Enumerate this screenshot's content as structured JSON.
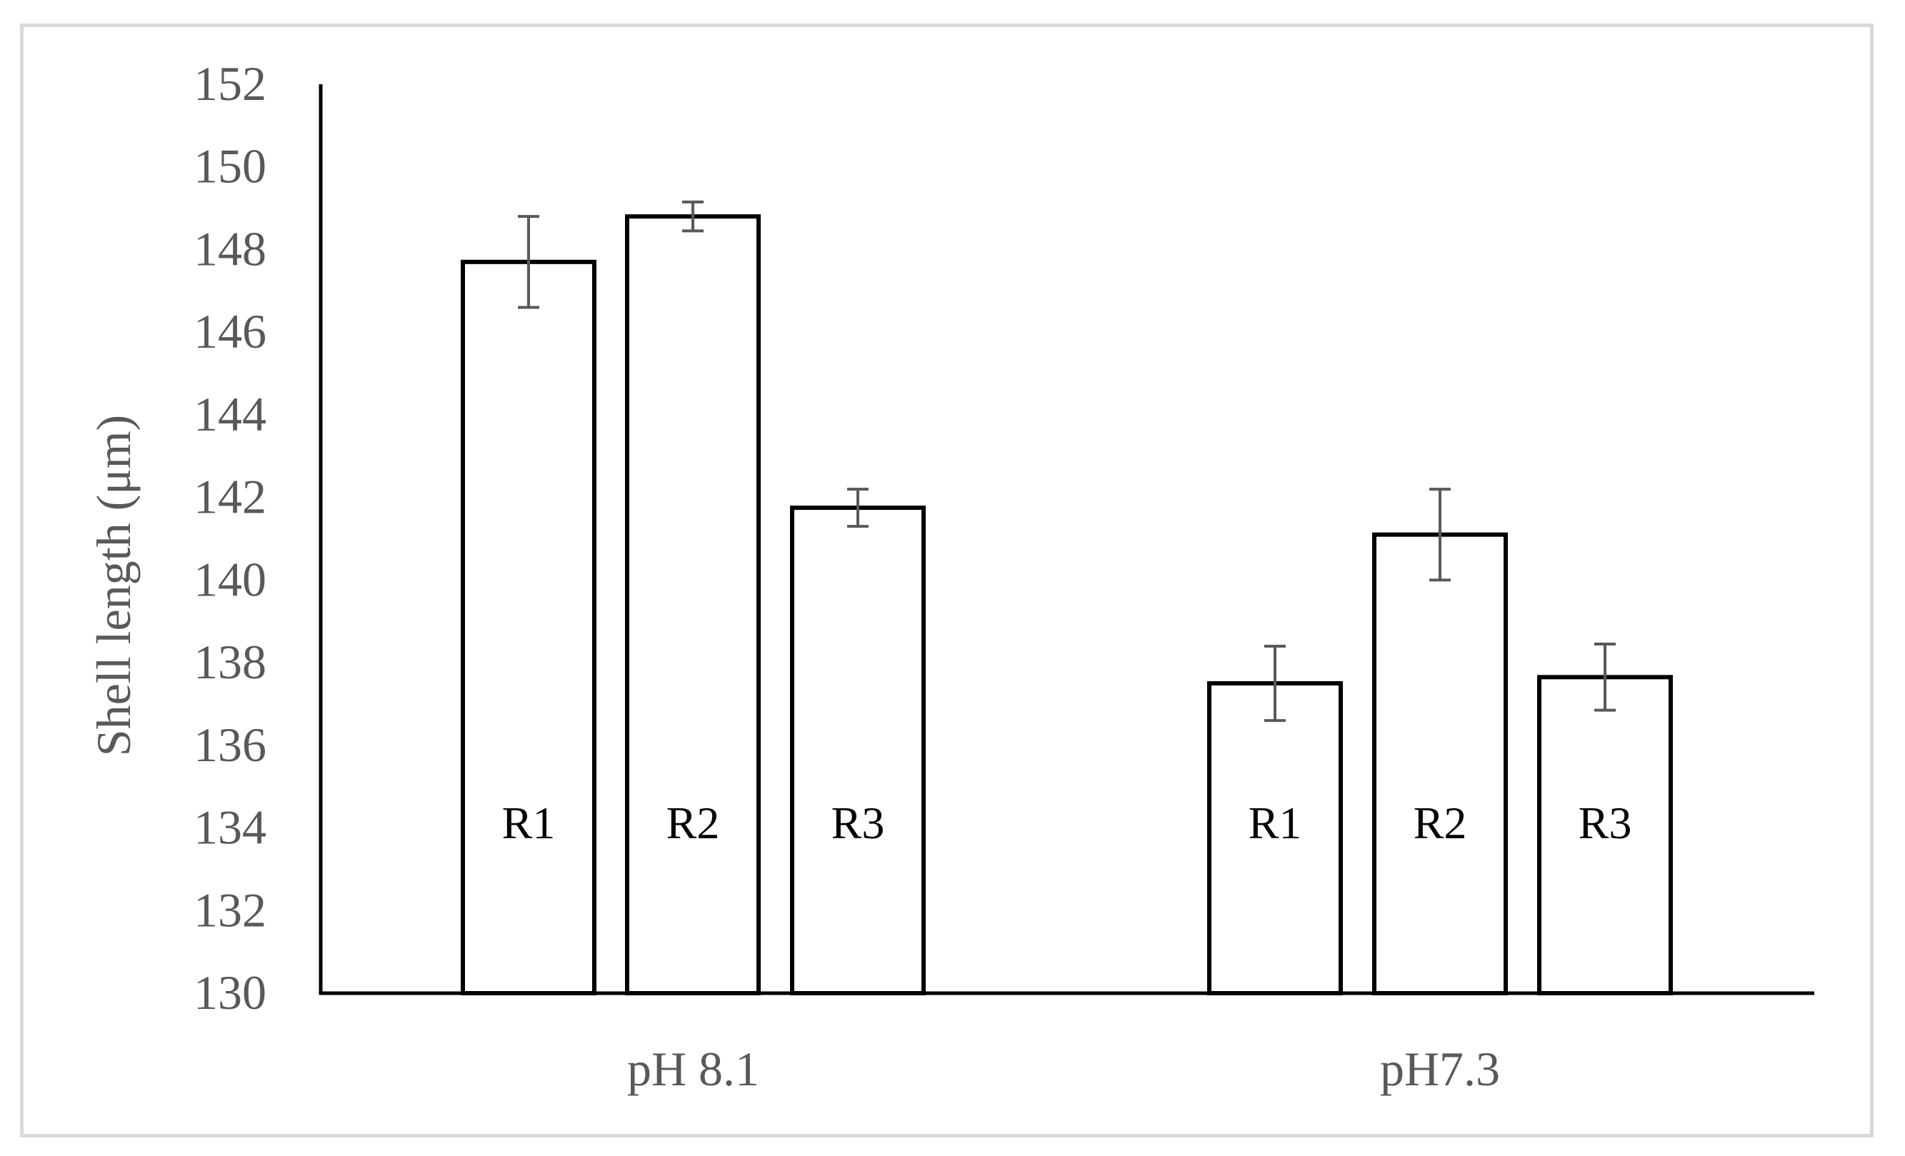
{
  "chart_data": {
    "type": "bar",
    "title": "",
    "xlabel": "",
    "ylabel": "Shell length (μm)",
    "ylim": [
      130,
      152
    ],
    "yticks": [
      130,
      132,
      134,
      136,
      138,
      140,
      142,
      144,
      146,
      148,
      150,
      152
    ],
    "grid": false,
    "legend": null,
    "categories": [
      "pH 8.1",
      "pH7.3"
    ],
    "groups": [
      {
        "category": "pH 8.1",
        "bars": [
          {
            "label": "R1",
            "value": 147.7,
            "error": 1.1
          },
          {
            "label": "R2",
            "value": 148.8,
            "error": 0.35
          },
          {
            "label": "R3",
            "value": 141.75,
            "error": 0.45
          }
        ]
      },
      {
        "category": "pH7.3",
        "bars": [
          {
            "label": "R1",
            "value": 137.5,
            "error": 0.9
          },
          {
            "label": "R2",
            "value": 141.1,
            "error": 1.1
          },
          {
            "label": "R3",
            "value": 137.65,
            "error": 0.8
          }
        ]
      }
    ],
    "series": [
      {
        "name": "R1",
        "values": [
          147.7,
          137.5
        ],
        "errors": [
          1.1,
          0.9
        ]
      },
      {
        "name": "R2",
        "values": [
          148.8,
          141.1
        ],
        "errors": [
          0.35,
          1.1
        ]
      },
      {
        "name": "R3",
        "values": [
          141.75,
          137.65
        ],
        "errors": [
          0.45,
          0.8
        ]
      }
    ],
    "colors": {
      "bar_fill": "#ffffff",
      "bar_stroke": "#000000",
      "error_bar": "#595959",
      "axis": "#000000",
      "text": "#595959",
      "frame": "#d9d9d9"
    }
  }
}
